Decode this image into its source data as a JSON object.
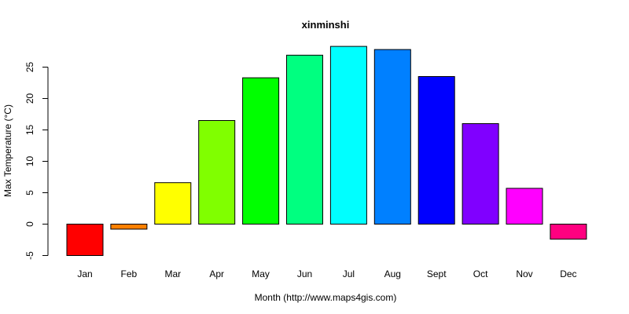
{
  "chart_data": {
    "type": "bar",
    "title": "xinminshi",
    "xlabel": "Month (http://www.maps4gis.com)",
    "ylabel": "Max Temperature (°C)",
    "ylim": [
      -5,
      28.5
    ],
    "yticks": [
      -5,
      0,
      5,
      10,
      15,
      20,
      25
    ],
    "grid": false,
    "categories": [
      "Jan",
      "Feb",
      "Mar",
      "Apr",
      "May",
      "Jun",
      "Jul",
      "Aug",
      "Sept",
      "Oct",
      "Nov",
      "Dec"
    ],
    "values": [
      -5.0,
      -0.8,
      6.6,
      16.5,
      23.3,
      26.9,
      28.3,
      27.8,
      23.5,
      16.0,
      5.7,
      -2.4
    ],
    "colors": [
      "#FF0000",
      "#FF8000",
      "#FFFF00",
      "#80FF00",
      "#00FF00",
      "#00FF80",
      "#00FFFF",
      "#0080FF",
      "#0000FF",
      "#8000FF",
      "#FF00FF",
      "#FF0080"
    ]
  }
}
